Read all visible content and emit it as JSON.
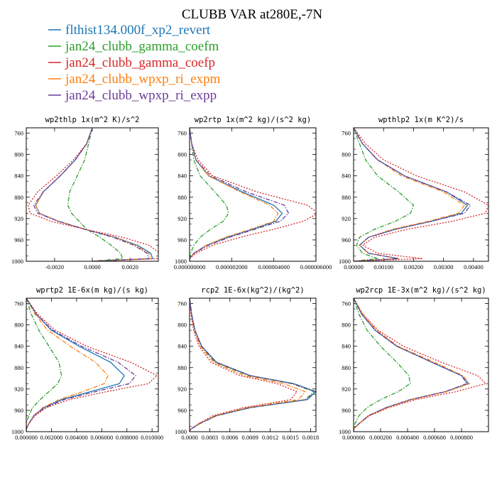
{
  "figure_title": "CLUBB VAR at280E,-7N",
  "chart_data": [
    {
      "type": "line",
      "title": "wp2thlp  1x(m^2 K)/s^2",
      "ylim": [
        1000,
        750
      ],
      "xlim": [
        -0.0035,
        0.0035
      ],
      "yticks": [
        "760",
        "800",
        "840",
        "880",
        "920",
        "960",
        "1000"
      ],
      "xticks": [
        "-0.0020",
        "0.0000",
        "0.0020"
      ],
      "y": [
        750,
        780,
        810,
        840,
        870,
        895,
        910,
        925,
        940,
        955,
        970,
        985,
        995,
        1000
      ],
      "series": [
        {
          "name": "flthist134.000f_xp2_revert",
          "values": [
            0.0,
            -0.0003,
            -0.0009,
            -0.0017,
            -0.0026,
            -0.003,
            -0.0028,
            -0.0018,
            -0.0004,
            0.0012,
            0.0024,
            0.0031,
            0.0032,
            0.0
          ]
        },
        {
          "name": "jan24_clubb_gamma_coefm",
          "values": [
            0.0,
            -0.0002,
            -0.0004,
            -0.0008,
            -0.0012,
            -0.0013,
            -0.0011,
            -0.0007,
            -0.0003,
            0.0004,
            0.001,
            0.0015,
            0.0016,
            0.0
          ]
        },
        {
          "name": "jan24_clubb_gamma_coefp",
          "values": [
            0.0,
            -0.0003,
            -0.001,
            -0.0019,
            -0.0029,
            -0.0034,
            -0.0033,
            -0.0022,
            -0.0004,
            0.0016,
            0.003,
            0.0036,
            0.0036,
            0.0
          ]
        },
        {
          "name": "jan24_clubb_wpxp_ri_expm",
          "values": [
            0.0,
            -0.0003,
            -0.0009,
            -0.0017,
            -0.0026,
            -0.003,
            -0.0028,
            -0.0018,
            -0.0004,
            0.0012,
            0.0023,
            0.003,
            0.0031,
            0.0
          ]
        },
        {
          "name": "jan24_clubb_wpxp_ri_expp",
          "values": [
            0.0,
            -0.0003,
            -0.0009,
            -0.0017,
            -0.0026,
            -0.0031,
            -0.0029,
            -0.0018,
            -0.0004,
            0.0011,
            0.0022,
            0.0029,
            0.003,
            0.0
          ]
        }
      ]
    },
    {
      "type": "line",
      "title": "wp2rtp  1x(m^2 kg)/(s^2 kg)",
      "ylim": [
        1000,
        750
      ],
      "xlim": [
        0.0,
        6e-06
      ],
      "yticks": [
        "760",
        "800",
        "840",
        "880",
        "920",
        "960",
        "1000"
      ],
      "xticks": [
        "0.000000000",
        "0.000002000",
        "0.000004000",
        "0.000006000"
      ],
      "y": [
        750,
        780,
        810,
        840,
        870,
        895,
        910,
        925,
        940,
        955,
        970,
        985,
        995,
        1000
      ],
      "series": [
        {
          "name": "flthist134.000f_xp2_revert",
          "values": [
            0.0,
            1e-07,
            3e-07,
            9e-07,
            2.5e-06,
            4e-06,
            4.4e-06,
            4.1e-06,
            3e-06,
            1.8e-06,
            8e-07,
            2e-07,
            0.0,
            0.0
          ]
        },
        {
          "name": "jan24_clubb_gamma_coefm",
          "values": [
            0.0,
            1e-07,
            2e-07,
            5e-07,
            1.2e-06,
            1.75e-06,
            1.85e-06,
            1.6e-06,
            1e-06,
            5e-07,
            2e-07,
            5e-08,
            0.0,
            0.0
          ]
        },
        {
          "name": "jan24_clubb_gamma_coefp",
          "values": [
            0.0,
            1e-07,
            4e-07,
            1.1e-06,
            3.2e-06,
            5.6e-06,
            6.1e-06,
            5.4e-06,
            4e-06,
            2.4e-06,
            1.1e-06,
            3e-07,
            0.0,
            0.0
          ]
        },
        {
          "name": "jan24_clubb_wpxp_ri_expm",
          "values": [
            0.0,
            1e-07,
            3e-07,
            9e-07,
            2.4e-06,
            3.8e-06,
            4.2e-06,
            4e-06,
            2.9e-06,
            1.7e-06,
            8e-07,
            2e-07,
            0.0,
            0.0
          ]
        },
        {
          "name": "jan24_clubb_wpxp_ri_expp",
          "values": [
            0.0,
            1e-07,
            3e-07,
            1e-06,
            2.7e-06,
            4.5e-06,
            4.7e-06,
            4.3e-06,
            3.1e-06,
            1.9e-06,
            9e-07,
            2e-07,
            0.0,
            0.0
          ]
        }
      ]
    },
    {
      "type": "line",
      "title": "wpthlp2  1x(m K^2)/s",
      "ylim": [
        1000,
        750
      ],
      "xlim": [
        0.0,
        0.0045
      ],
      "yticks": [
        "760",
        "800",
        "840",
        "880",
        "920",
        "960",
        "1000"
      ],
      "xticks": [
        "0.00000",
        "0.00100",
        "0.00200",
        "0.00300",
        "0.00400"
      ],
      "y": [
        750,
        780,
        810,
        840,
        870,
        895,
        910,
        925,
        940,
        955,
        970,
        985,
        995,
        1000
      ],
      "series": [
        {
          "name": "flthist134.000f_xp2_revert",
          "values": [
            0.0,
            0.0003,
            0.0008,
            0.0017,
            0.0031,
            0.0038,
            0.0036,
            0.0026,
            0.0014,
            0.0005,
            0.0002,
            0.0005,
            0.0015,
            0.0
          ]
        },
        {
          "name": "jan24_clubb_gamma_coefm",
          "values": [
            0.0,
            0.0002,
            0.0004,
            0.0008,
            0.0015,
            0.002,
            0.0019,
            0.0014,
            0.0007,
            0.0002,
            0.0001,
            0.0003,
            0.0008,
            0.0
          ]
        },
        {
          "name": "jan24_clubb_gamma_coefp",
          "values": [
            0.0,
            0.0004,
            0.001,
            0.0021,
            0.0037,
            0.0045,
            0.0044,
            0.0033,
            0.0018,
            0.0007,
            0.0003,
            0.0008,
            0.0023,
            0.0
          ]
        },
        {
          "name": "jan24_clubb_wpxp_ri_expm",
          "values": [
            0.0,
            0.0003,
            0.0008,
            0.0016,
            0.003,
            0.0037,
            0.0035,
            0.0025,
            0.0013,
            0.0005,
            0.0002,
            0.0005,
            0.0015,
            0.0
          ]
        },
        {
          "name": "jan24_clubb_wpxp_ri_expp",
          "values": [
            0.0,
            0.0003,
            0.0008,
            0.0017,
            0.0031,
            0.0039,
            0.0037,
            0.0026,
            0.0014,
            0.0005,
            0.0002,
            0.0005,
            0.0015,
            0.0
          ]
        }
      ]
    },
    {
      "type": "line",
      "title": "wprtp2  1E-6x(m kg)/(s kg)",
      "ylim": [
        1000,
        750
      ],
      "xlim": [
        0.0,
        0.0105
      ],
      "yticks": [
        "760",
        "800",
        "840",
        "880",
        "920",
        "960",
        "1000"
      ],
      "xticks": [
        "0.000000",
        "0.002000",
        "0.004000",
        "0.006000",
        "0.008000",
        "0.010000"
      ],
      "y": [
        750,
        780,
        810,
        840,
        870,
        895,
        910,
        925,
        940,
        955,
        970,
        985,
        995,
        1000
      ],
      "series": [
        {
          "name": "flthist134.000f_xp2_revert",
          "values": [
            0.0,
            0.0008,
            0.002,
            0.0042,
            0.0067,
            0.0078,
            0.0074,
            0.0051,
            0.0028,
            0.0014,
            0.0006,
            0.0002,
            0.0,
            0.0
          ]
        },
        {
          "name": "jan24_clubb_gamma_coefm",
          "values": [
            0.0,
            0.0004,
            0.001,
            0.0018,
            0.0026,
            0.0028,
            0.0025,
            0.0018,
            0.0011,
            0.0005,
            0.0002,
            0.0,
            0.0,
            0.0
          ]
        },
        {
          "name": "jan24_clubb_gamma_coefp",
          "values": [
            0.0,
            0.0009,
            0.0023,
            0.0048,
            0.0083,
            0.0104,
            0.0097,
            0.0064,
            0.0034,
            0.0016,
            0.0007,
            0.0002,
            0.0,
            0.0
          ]
        },
        {
          "name": "jan24_clubb_wpxp_ri_expm",
          "values": [
            0.0,
            0.0007,
            0.0017,
            0.0035,
            0.0055,
            0.0065,
            0.0062,
            0.0045,
            0.0026,
            0.0013,
            0.0006,
            0.0002,
            0.0,
            0.0
          ]
        },
        {
          "name": "jan24_clubb_wpxp_ri_expp",
          "values": [
            0.0,
            0.0008,
            0.0021,
            0.0044,
            0.0073,
            0.0087,
            0.0082,
            0.0055,
            0.003,
            0.0015,
            0.0006,
            0.0002,
            0.0,
            0.0
          ]
        }
      ]
    },
    {
      "type": "line",
      "title": "rcp2  1E-6x(kg^2)/(kg^2)",
      "ylim": [
        1000,
        750
      ],
      "xlim": [
        0.0,
        0.00188
      ],
      "yticks": [
        "760",
        "800",
        "840",
        "880",
        "920",
        "960",
        "1000"
      ],
      "xticks": [
        "0.0000",
        "0.0003",
        "0.0006",
        "0.0009",
        "0.0012",
        "0.0015",
        "0.0018"
      ],
      "y": [
        750,
        780,
        810,
        840,
        870,
        895,
        910,
        925,
        940,
        955,
        970,
        985,
        995,
        1000
      ],
      "series": [
        {
          "name": "flthist134.000f_xp2_revert",
          "values": [
            0.0,
            3e-05,
            8e-05,
            0.00018,
            0.0004,
            0.0009,
            0.00155,
            0.00188,
            0.00175,
            0.0009,
            0.0004,
            0.00015,
            2e-05,
            0.0
          ]
        },
        {
          "name": "jan24_clubb_gamma_coefm",
          "values": [
            0.0,
            3e-05,
            8e-05,
            0.00017,
            0.00038,
            0.00088,
            0.00152,
            0.00185,
            0.00172,
            0.0009,
            0.0004,
            0.00015,
            2e-05,
            0.0
          ]
        },
        {
          "name": "jan24_clubb_gamma_coefp",
          "values": [
            0.0,
            2e-05,
            6e-05,
            0.00014,
            0.00032,
            0.00075,
            0.0013,
            0.0016,
            0.0015,
            0.0008,
            0.00035,
            0.00013,
            2e-05,
            0.0
          ]
        },
        {
          "name": "jan24_clubb_wpxp_ri_expm",
          "values": [
            0.0,
            3e-05,
            7e-05,
            0.00016,
            0.00036,
            0.00082,
            0.0014,
            0.00172,
            0.00162,
            0.00085,
            0.00038,
            0.00014,
            2e-05,
            0.0
          ]
        },
        {
          "name": "jan24_clubb_wpxp_ri_expp",
          "values": [
            0.0,
            3e-05,
            8e-05,
            0.00018,
            0.0004,
            0.0009,
            0.00154,
            0.00187,
            0.00174,
            0.0009,
            0.0004,
            0.00015,
            2e-05,
            0.0
          ]
        }
      ]
    },
    {
      "type": "line",
      "title": "wp2rcp  1E-3x(m^2 kg)/(s^2 kg)",
      "ylim": [
        1000,
        750
      ],
      "xlim": [
        0.0,
        0.001
      ],
      "yticks": [
        "760",
        "800",
        "840",
        "880",
        "920",
        "960",
        "1000"
      ],
      "xticks": [
        "0.000000",
        "0.000200",
        "0.000400",
        "0.000600",
        "0.000800"
      ],
      "y": [
        750,
        780,
        810,
        840,
        870,
        895,
        910,
        925,
        940,
        955,
        970,
        985,
        995,
        1000
      ],
      "series": [
        {
          "name": "flthist134.000f_xp2_revert",
          "values": [
            0.0,
            6e-05,
            0.00016,
            0.00032,
            0.00058,
            0.0008,
            0.00085,
            0.00068,
            0.00042,
            0.00024,
            0.00011,
            4e-05,
            0.0,
            0.0
          ]
        },
        {
          "name": "jan24_clubb_gamma_coefm",
          "values": [
            0.0,
            4e-05,
            0.0001,
            0.0002,
            0.00032,
            0.00041,
            0.00042,
            0.00033,
            0.0002,
            0.0001,
            4e-05,
            1e-05,
            0.0,
            0.0
          ]
        },
        {
          "name": "jan24_clubb_gamma_coefp",
          "values": [
            0.0,
            7e-05,
            0.00018,
            0.00037,
            0.00065,
            0.00092,
            0.00098,
            0.00076,
            0.00046,
            0.00026,
            0.00012,
            4e-05,
            0.0,
            0.0
          ]
        },
        {
          "name": "jan24_clubb_wpxp_ri_expm",
          "values": [
            0.0,
            7e-05,
            0.00017,
            0.00033,
            0.0006,
            0.00081,
            0.00086,
            0.00069,
            0.00043,
            0.00025,
            0.00011,
            4e-05,
            0.0,
            0.0
          ]
        },
        {
          "name": "jan24_clubb_wpxp_ri_expp",
          "values": [
            0.0,
            6e-05,
            0.00016,
            0.00032,
            0.00058,
            0.0008,
            0.00084,
            0.00068,
            0.00042,
            0.00024,
            0.00011,
            4e-05,
            0.0,
            0.0
          ]
        }
      ]
    }
  ],
  "legend": [
    {
      "label": "flthist134.000f_xp2_revert",
      "color": "#1f77b4",
      "dash": "solid"
    },
    {
      "label": "jan24_clubb_gamma_coefm",
      "color": "#2ca02c",
      "dash": "dashdot"
    },
    {
      "label": "jan24_clubb_gamma_coefp",
      "color": "#d62728",
      "dash": "dotted"
    },
    {
      "label": "jan24_clubb_wpxp_ri_expm",
      "color": "#ff7f0e",
      "dash": "dashdot"
    },
    {
      "label": "jan24_clubb_wpxp_ri_expp",
      "color": "#6a3d9a",
      "dash": "dashdot"
    }
  ]
}
